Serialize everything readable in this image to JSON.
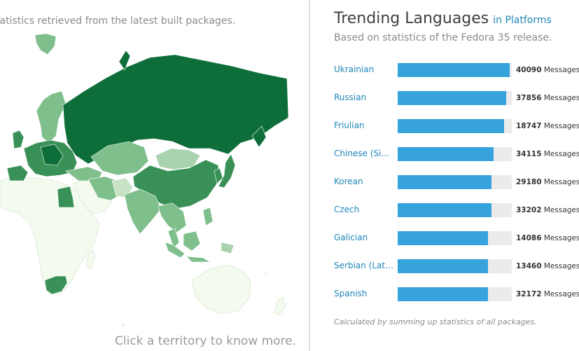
{
  "map": {
    "caption": "tatistics retrieved from the latest built packages.",
    "hint": "Click a territory to know more.",
    "colors": {
      "ocean": "#ffffff",
      "light": "#f3faee",
      "mid": "#7fbf8c",
      "strong": "#3a9158",
      "dark": "#0e6e3a"
    }
  },
  "panel": {
    "title": "Trending Languages",
    "title_link": "in Platforms",
    "subtitle": "Based on statistics of the Fedora 35 release.",
    "unit_label": "Messages",
    "footnote": "Calculated by summing up statistics of all packages.",
    "languages": [
      {
        "name": "Ukrainian",
        "count": "40090",
        "share": 0.98
      },
      {
        "name": "Russian",
        "count": "37856",
        "share": 0.95
      },
      {
        "name": "Friulian",
        "count": "18747",
        "share": 0.93
      },
      {
        "name": "Chinese (Simplified)",
        "count": "34115",
        "share": 0.84
      },
      {
        "name": "Korean",
        "count": "29180",
        "share": 0.82
      },
      {
        "name": "Czech",
        "count": "33202",
        "share": 0.82
      },
      {
        "name": "Galician",
        "count": "14086",
        "share": 0.79
      },
      {
        "name": "Serbian (Latin)",
        "count": "13460",
        "share": 0.79
      },
      {
        "name": "Spanish",
        "count": "32172",
        "share": 0.79
      }
    ]
  }
}
